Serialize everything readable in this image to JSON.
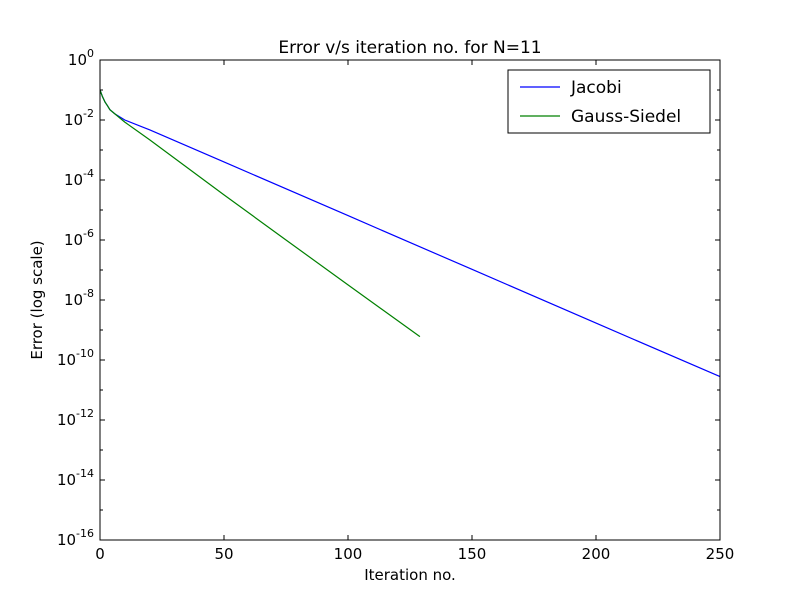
{
  "chart_data": {
    "type": "line",
    "title": "Error v/s iteration no. for N=11",
    "xlabel": "Iteration no.",
    "ylabel": "Error (log scale)",
    "xlim": [
      0,
      250
    ],
    "ylim": [
      1e-16,
      1
    ],
    "y_scale": "log",
    "grid": false,
    "legend_position": "top-right",
    "x_ticks": [
      0,
      50,
      100,
      150,
      200,
      250
    ],
    "x_tick_labels": [
      "0",
      "50",
      "100",
      "150",
      "200",
      "250"
    ],
    "y_ticks": [
      0,
      -2,
      -4,
      -6,
      -8,
      -10,
      -12,
      -14,
      -16
    ],
    "y_tick_labels": [
      {
        "base": "10",
        "exp": "0"
      },
      {
        "base": "10",
        "exp": "-2"
      },
      {
        "base": "10",
        "exp": "-4"
      },
      {
        "base": "10",
        "exp": "-6"
      },
      {
        "base": "10",
        "exp": "-8"
      },
      {
        "base": "10",
        "exp": "-10"
      },
      {
        "base": "10",
        "exp": "-12"
      },
      {
        "base": "10",
        "exp": "-14"
      },
      {
        "base": "10",
        "exp": "-16"
      }
    ],
    "series": [
      {
        "name": "Jacobi",
        "color": "#0000ff",
        "x": [
          0,
          1,
          2,
          3,
          4,
          6,
          10,
          20,
          50,
          100,
          150,
          200,
          250
        ],
        "y": [
          0.1,
          0.06,
          0.04,
          0.03,
          0.022,
          0.016,
          0.01,
          0.0047,
          0.0004,
          6.5e-06,
          1.05e-07,
          1.7e-09,
          2.8e-11
        ]
      },
      {
        "name": "Gauss-Siedel",
        "color": "#008000",
        "x": [
          0,
          1,
          2,
          3,
          4,
          6,
          10,
          20,
          50,
          75,
          100,
          129
        ],
        "y": [
          0.1,
          0.06,
          0.04,
          0.03,
          0.022,
          0.016,
          0.0085,
          0.0022,
          3.2e-05,
          1e-06,
          3.2e-08,
          6e-10
        ]
      }
    ]
  }
}
